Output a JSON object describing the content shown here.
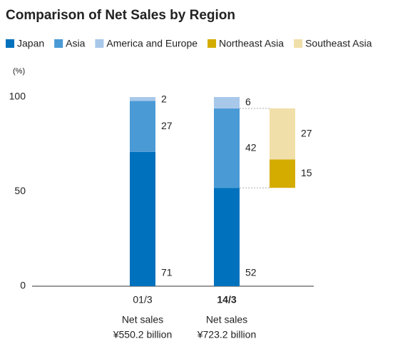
{
  "chart_data": {
    "type": "stacked-bar",
    "title": "Comparison of Net Sales by Region",
    "y_label": "(%)",
    "categories": [
      "01/3",
      "14/3",
      null
    ],
    "annotations": [
      [
        "Net sales",
        "¥550.2 billion"
      ],
      [
        "Net sales",
        "¥723.2 billion"
      ]
    ],
    "series": [
      {
        "name": "Japan",
        "color": "#0071bc",
        "values": [
          71,
          52,
          null
        ]
      },
      {
        "name": "Asia",
        "color": "#4a9ad6",
        "values": [
          27,
          42,
          null
        ]
      },
      {
        "name": "America and Europe",
        "color": "#a8c8ea",
        "values": [
          2,
          6,
          null
        ]
      },
      {
        "name": "Northeast Asia",
        "color": "#d4ac00",
        "values": [
          null,
          null,
          15
        ]
      },
      {
        "name": "Southeast Asia",
        "color": "#f0dfa8",
        "values": [
          null,
          null,
          27
        ]
      }
    ],
    "ylim": [
      0,
      100
    ],
    "yticks": [
      0,
      50,
      100
    ],
    "grid": false
  }
}
